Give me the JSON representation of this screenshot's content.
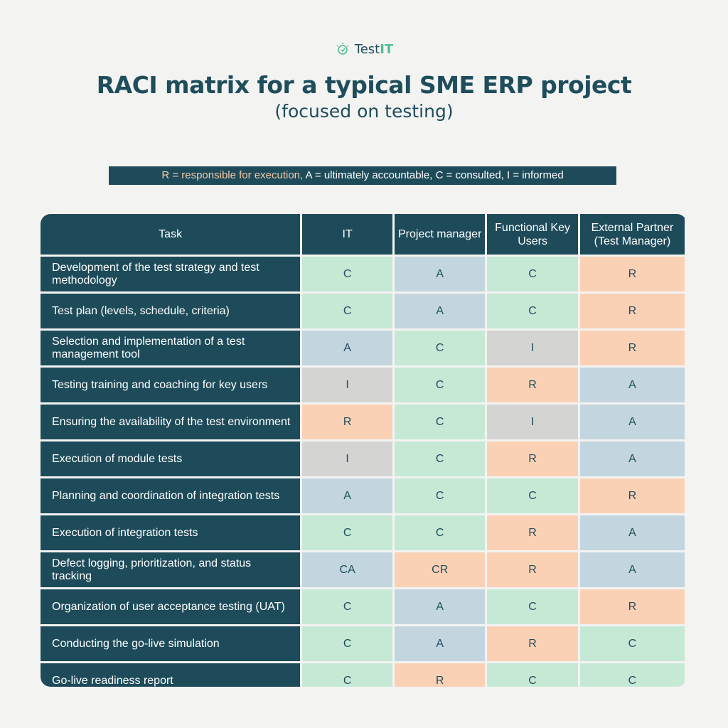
{
  "brand": {
    "name_prefix": "Test",
    "name_accent": "IT"
  },
  "header": {
    "title": "RACI matrix for a typical SME ERP project",
    "subtitle": "(focused on testing)"
  },
  "legend": {
    "responsible": "R = responsible for execution,",
    "rest": "A = ultimately accountable,  C = consulted,   I = informed"
  },
  "table": {
    "columns": [
      "Task",
      "IT",
      "Project manager",
      "Functional Key Users",
      "External Partner (Test Manager)"
    ],
    "rows": [
      {
        "task": "Development of the test strategy and test methodology",
        "values": [
          "C",
          "A",
          "C",
          "R"
        ]
      },
      {
        "task": "Test plan (levels, schedule, criteria)",
        "values": [
          "C",
          "A",
          "C",
          "R"
        ]
      },
      {
        "task": "Selection and implementation of a test management tool",
        "values": [
          "A",
          "C",
          "I",
          "R"
        ]
      },
      {
        "task": "Testing training and coaching for key users",
        "values": [
          "I",
          "C",
          "R",
          "A"
        ]
      },
      {
        "task": "Ensuring the availability of the test environment",
        "values": [
          "R",
          "C",
          "I",
          "A"
        ]
      },
      {
        "task": "Execution of module tests",
        "values": [
          "I",
          "C",
          "R",
          "A"
        ]
      },
      {
        "task": "Planning and coordination of integration tests",
        "values": [
          "A",
          "C",
          "C",
          "R"
        ]
      },
      {
        "task": "Execution of integration tests",
        "values": [
          "C",
          "C",
          "R",
          "A"
        ]
      },
      {
        "task": "Defect logging, prioritization, and status tracking",
        "values": [
          "CA",
          "CR",
          "R",
          "A"
        ]
      },
      {
        "task": "Organization of user acceptance testing (UAT)",
        "values": [
          "C",
          "A",
          "C",
          "R"
        ]
      },
      {
        "task": "Conducting the go-live simulation",
        "values": [
          "C",
          "A",
          "R",
          "C"
        ]
      },
      {
        "task": "Go-live readiness report",
        "values": [
          "C",
          "R",
          "C",
          "C"
        ]
      }
    ]
  },
  "colors": {
    "header_bg": "#1d4b5a",
    "C": "#c6e9d6",
    "A": "#c3d6df",
    "R": "#fbd1b6",
    "I": "#d4d4d3"
  }
}
